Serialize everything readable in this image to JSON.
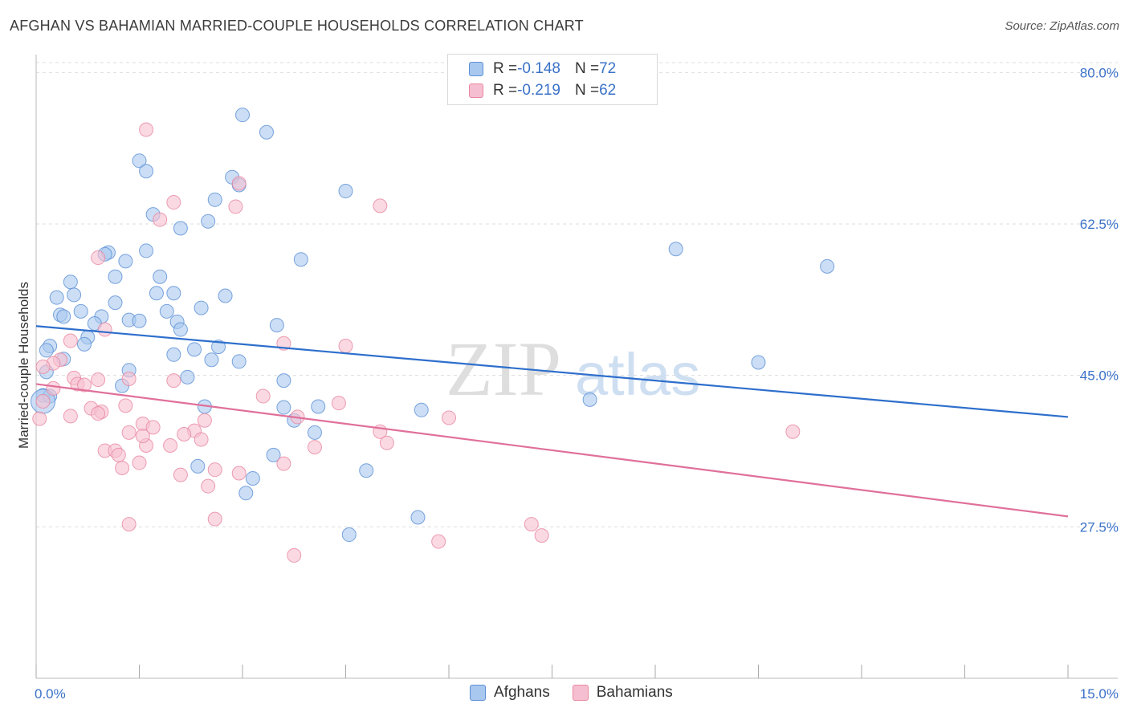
{
  "title": "AFGHAN VS BAHAMIAN MARRIED-COUPLE HOUSEHOLDS CORRELATION CHART",
  "source": "Source: ZipAtlas.com",
  "watermark": {
    "zip": "ZIP",
    "atlas": "atlas"
  },
  "legend": {
    "rows": [
      {
        "r_label": "R = ",
        "r_value": "-0.148",
        "n_label": "N = ",
        "n_value": "72"
      },
      {
        "r_label": "R = ",
        "r_value": "-0.219",
        "n_label": "N = ",
        "n_value": "62"
      }
    ]
  },
  "colors": {
    "afghans_fill": "#a9c8ef",
    "afghans_stroke": "#5b8fd6",
    "afghans_line": "#2e6fcc",
    "bahamians_fill": "#f6bfd1",
    "bahamians_stroke": "#e8879f",
    "bahamians_line": "#e0709a",
    "tick_label": "#3a72c8",
    "grid": "#dddddd"
  },
  "chart_data": {
    "type": "scatter",
    "title": "AFGHAN VS BAHAMIAN MARRIED-COUPLE HOUSEHOLDS CORRELATION CHART",
    "xlabel": "",
    "ylabel": "Married-couple Households",
    "xlim": [
      0,
      15
    ],
    "ylim": [
      10,
      83
    ],
    "x_tick_labels": [
      "0.0%",
      "15.0%"
    ],
    "y_ticks": [
      27.5,
      45.0,
      62.5,
      80.0
    ],
    "y_tick_labels": [
      "27.5%",
      "45.0%",
      "62.5%",
      "80.0%"
    ],
    "grid": true,
    "legend_position": "top-center",
    "series": [
      {
        "name": "Afghans",
        "R": -0.148,
        "N": 72,
        "trend": {
          "x": [
            0,
            15
          ],
          "y": [
            50.7,
            40.2
          ]
        },
        "points": [
          [
            3.0,
            75.1
          ],
          [
            3.35,
            73.1
          ],
          [
            1.5,
            69.8
          ],
          [
            1.6,
            68.6
          ],
          [
            2.85,
            67.9
          ],
          [
            2.95,
            67.0
          ],
          [
            4.5,
            66.3
          ],
          [
            2.6,
            65.3
          ],
          [
            1.7,
            63.6
          ],
          [
            2.5,
            62.8
          ],
          [
            2.1,
            62.0
          ],
          [
            9.3,
            59.6
          ],
          [
            1.6,
            59.4
          ],
          [
            1.05,
            59.2
          ],
          [
            1.0,
            59.0
          ],
          [
            3.85,
            58.4
          ],
          [
            1.3,
            58.2
          ],
          [
            11.5,
            57.6
          ],
          [
            1.15,
            56.4
          ],
          [
            1.8,
            56.4
          ],
          [
            0.5,
            55.8
          ],
          [
            1.75,
            54.5
          ],
          [
            2.0,
            54.5
          ],
          [
            0.55,
            54.3
          ],
          [
            0.3,
            54.0
          ],
          [
            2.75,
            54.2
          ],
          [
            1.15,
            53.4
          ],
          [
            2.4,
            52.8
          ],
          [
            0.65,
            52.4
          ],
          [
            1.9,
            52.4
          ],
          [
            0.35,
            52.0
          ],
          [
            0.4,
            51.8
          ],
          [
            0.95,
            51.8
          ],
          [
            1.35,
            51.4
          ],
          [
            1.5,
            51.3
          ],
          [
            2.05,
            51.2
          ],
          [
            0.85,
            51.0
          ],
          [
            3.5,
            50.8
          ],
          [
            2.1,
            50.3
          ],
          [
            0.75,
            49.4
          ],
          [
            0.7,
            48.6
          ],
          [
            0.2,
            48.4
          ],
          [
            2.3,
            48.0
          ],
          [
            0.15,
            47.9
          ],
          [
            2.0,
            47.4
          ],
          [
            2.55,
            46.8
          ],
          [
            2.95,
            46.6
          ],
          [
            0.4,
            46.9
          ],
          [
            10.5,
            46.5
          ],
          [
            1.35,
            45.6
          ],
          [
            0.15,
            45.4
          ],
          [
            2.2,
            44.8
          ],
          [
            3.6,
            44.4
          ],
          [
            1.25,
            43.8
          ],
          [
            0.1,
            42.7
          ],
          [
            0.2,
            42.6
          ],
          [
            8.05,
            42.2
          ],
          [
            2.45,
            41.4
          ],
          [
            3.6,
            41.3
          ],
          [
            4.1,
            41.4
          ],
          [
            5.6,
            41.0
          ],
          [
            3.75,
            39.8
          ],
          [
            4.05,
            38.4
          ],
          [
            3.45,
            35.8
          ],
          [
            2.35,
            34.5
          ],
          [
            4.8,
            34.0
          ],
          [
            3.15,
            33.1
          ],
          [
            3.05,
            31.4
          ],
          [
            5.55,
            28.6
          ],
          [
            4.55,
            26.6
          ],
          [
            0.1,
            42.0
          ],
          [
            2.65,
            48.3
          ]
        ]
      },
      {
        "name": "Bahamians",
        "R": -0.219,
        "N": 62,
        "trend": {
          "x": [
            0,
            15
          ],
          "y": [
            44.0,
            28.7
          ]
        },
        "points": [
          [
            1.6,
            73.4
          ],
          [
            2.95,
            67.2
          ],
          [
            2.0,
            65.0
          ],
          [
            2.9,
            64.5
          ],
          [
            5.0,
            64.6
          ],
          [
            1.8,
            63.0
          ],
          [
            0.9,
            58.6
          ],
          [
            1.0,
            50.3
          ],
          [
            0.5,
            49.0
          ],
          [
            3.6,
            48.7
          ],
          [
            4.5,
            48.4
          ],
          [
            0.35,
            46.8
          ],
          [
            0.25,
            46.4
          ],
          [
            0.1,
            46.0
          ],
          [
            0.55,
            44.7
          ],
          [
            0.9,
            44.5
          ],
          [
            1.35,
            44.6
          ],
          [
            2.0,
            44.4
          ],
          [
            0.6,
            44.0
          ],
          [
            0.7,
            43.9
          ],
          [
            0.25,
            43.5
          ],
          [
            3.3,
            42.6
          ],
          [
            1.3,
            41.5
          ],
          [
            0.8,
            41.2
          ],
          [
            0.95,
            40.8
          ],
          [
            0.9,
            40.6
          ],
          [
            0.5,
            40.3
          ],
          [
            3.8,
            40.2
          ],
          [
            6.0,
            40.1
          ],
          [
            1.55,
            39.4
          ],
          [
            1.7,
            39.0
          ],
          [
            2.3,
            38.6
          ],
          [
            1.35,
            38.4
          ],
          [
            5.0,
            38.5
          ],
          [
            11.0,
            38.5
          ],
          [
            2.15,
            38.2
          ],
          [
            2.4,
            37.6
          ],
          [
            5.1,
            37.2
          ],
          [
            1.6,
            36.9
          ],
          [
            1.95,
            36.9
          ],
          [
            4.05,
            36.7
          ],
          [
            1.0,
            36.3
          ],
          [
            1.15,
            36.3
          ],
          [
            1.2,
            35.8
          ],
          [
            1.5,
            34.9
          ],
          [
            3.6,
            34.8
          ],
          [
            1.25,
            34.3
          ],
          [
            2.6,
            34.1
          ],
          [
            2.95,
            33.7
          ],
          [
            2.1,
            33.5
          ],
          [
            2.5,
            32.2
          ],
          [
            2.6,
            28.4
          ],
          [
            1.35,
            27.8
          ],
          [
            7.2,
            27.8
          ],
          [
            7.35,
            26.5
          ],
          [
            5.85,
            25.8
          ],
          [
            3.75,
            24.2
          ],
          [
            0.1,
            42.0
          ],
          [
            0.05,
            40.0
          ],
          [
            2.45,
            39.8
          ],
          [
            4.4,
            41.8
          ],
          [
            1.55,
            38.0
          ]
        ]
      }
    ]
  }
}
